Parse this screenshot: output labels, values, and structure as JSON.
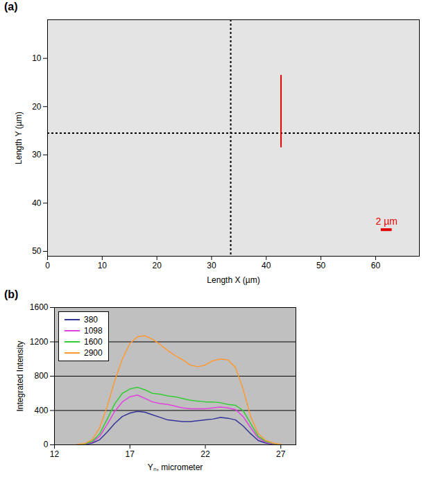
{
  "chart_data": [
    {
      "type": "image",
      "panel": "(a)",
      "x_label": "Length X (µm)",
      "y_label": "Length Y (µm)",
      "xlim": [
        0,
        68
      ],
      "xticks": [
        0,
        10,
        20,
        30,
        40,
        50,
        60
      ],
      "ylim": [
        2,
        51
      ],
      "yticks": [
        10,
        20,
        30,
        40,
        50
      ],
      "crosshair": {
        "x": 33.5,
        "y": 25.5
      },
      "profile_line": {
        "x": 42.7,
        "y": [
          13.5,
          28.5
        ],
        "color": "#e00000"
      },
      "scale_bar": {
        "length": 2,
        "label": "2 µm",
        "x": 61,
        "y": 45.5,
        "color": "#e00000"
      }
    },
    {
      "type": "line",
      "panel": "(b)",
      "x_label": "Yₙ, micrometer",
      "y_label": "Integrated Intensity",
      "xlim": [
        12,
        28
      ],
      "xticks": [
        12,
        17,
        22,
        27
      ],
      "ylim": [
        0,
        1600
      ],
      "yticks": [
        0,
        400,
        800,
        1200,
        1600
      ],
      "grid": true,
      "legend": "top-left",
      "x": [
        13.5,
        14,
        14.5,
        15,
        15.5,
        16,
        16.5,
        17,
        17.5,
        18,
        18.5,
        19,
        19.5,
        20,
        20.5,
        21,
        21.5,
        22,
        22.5,
        23,
        23.5,
        24,
        24.5,
        25,
        25.5,
        26,
        26.5,
        27
      ],
      "series": [
        {
          "name": "380",
          "color": "#333399",
          "values": [
            2,
            5,
            20,
            60,
            150,
            250,
            330,
            370,
            390,
            380,
            350,
            320,
            290,
            280,
            270,
            270,
            280,
            290,
            300,
            320,
            310,
            290,
            220,
            130,
            50,
            20,
            8,
            2
          ]
        },
        {
          "name": "1098",
          "color": "#e040e0",
          "values": [
            3,
            8,
            30,
            100,
            240,
            390,
            500,
            560,
            580,
            540,
            500,
            480,
            470,
            450,
            430,
            420,
            420,
            420,
            430,
            440,
            430,
            410,
            330,
            200,
            80,
            30,
            10,
            3
          ]
        },
        {
          "name": "1600",
          "color": "#33cc33",
          "values": [
            5,
            10,
            40,
            130,
            300,
            480,
            600,
            650,
            670,
            640,
            600,
            590,
            570,
            560,
            540,
            520,
            510,
            500,
            500,
            490,
            470,
            460,
            400,
            250,
            100,
            40,
            15,
            5
          ]
        },
        {
          "name": "2900",
          "color": "#ff9933",
          "values": [
            5,
            15,
            60,
            200,
            450,
            750,
            1000,
            1180,
            1260,
            1270,
            1230,
            1170,
            1100,
            1040,
            990,
            930,
            910,
            930,
            980,
            1000,
            990,
            900,
            650,
            330,
            130,
            50,
            20,
            5
          ]
        }
      ]
    }
  ]
}
